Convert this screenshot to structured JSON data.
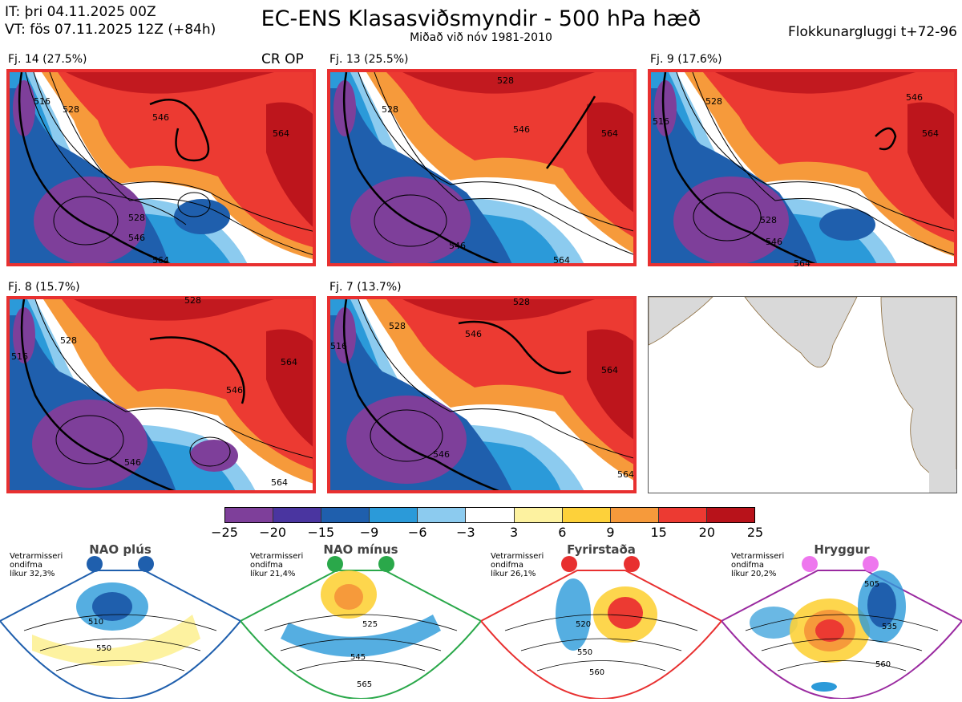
{
  "header": {
    "it_line": "IT: þri 04.11.2025 00Z",
    "vt_line": "VT: fös 07.11.2025 12Z  (+84h)",
    "title": "EC-ENS Klasasviðsmyndir - 500 hPa hæð",
    "subtitle": "Miðað við nóv 1981-2010",
    "window": "Flokkunargluggi t+72-96"
  },
  "panels": [
    {
      "label": "Fj. 14 (27.5%)",
      "tag": "CR OP",
      "contours": [
        "516",
        "528",
        "546",
        "564",
        "528",
        "546",
        "564"
      ]
    },
    {
      "label": "Fj. 13 (25.5%)",
      "tag": "",
      "contours": [
        "528",
        "528",
        "546",
        "564",
        "546",
        "564"
      ]
    },
    {
      "label": "Fj. 9 (17.6%)",
      "tag": "",
      "contours": [
        "516",
        "528",
        "546",
        "564",
        "528",
        "546",
        "564"
      ]
    },
    {
      "label": "Fj. 8 (15.7%)",
      "tag": "",
      "contours": [
        "516",
        "528",
        "546",
        "564",
        "528",
        "546",
        "564"
      ]
    },
    {
      "label": "Fj. 7 (13.7%)",
      "tag": "",
      "contours": [
        "516",
        "528",
        "546",
        "564",
        "528",
        "546",
        "564"
      ]
    }
  ],
  "colorbar": {
    "colors": [
      "#7e3f9a",
      "#4a35a0",
      "#1f5fad",
      "#2b9ad9",
      "#8ccbef",
      "#ffffff",
      "#fdf2a0",
      "#fdd13a",
      "#f69a3b",
      "#ec3a32",
      "#b8121a"
    ],
    "ticks": [
      "−25",
      "−20",
      "−15",
      "−9",
      "−6",
      "−3",
      "3",
      "6",
      "9",
      "15",
      "20",
      "25"
    ]
  },
  "regimes": [
    {
      "name": "NAO plús",
      "info": [
        "Vetrarmisseri",
        "ondifma",
        "líkur 32,3%"
      ],
      "color": "#1f5fad",
      "labels": [
        "510",
        "550"
      ]
    },
    {
      "name": "NAO mínus",
      "info": [
        "Vetrarmisseri",
        "ondifma",
        "líkur 21,4%"
      ],
      "color": "#2aa84a",
      "labels": [
        "525",
        "545",
        "565"
      ]
    },
    {
      "name": "Fyrirstaða",
      "info": [
        "Vetrarmisseri",
        "ondifma",
        "líkur 26,1%"
      ],
      "color": "#e83030",
      "labels": [
        "520",
        "550",
        "560"
      ]
    },
    {
      "name": "Hryggur",
      "info": [
        "Vetrarmisseri",
        "ondifma",
        "líkur 20,2%"
      ],
      "color": "#9a2aa0",
      "labels": [
        "505",
        "535",
        "560"
      ]
    }
  ]
}
